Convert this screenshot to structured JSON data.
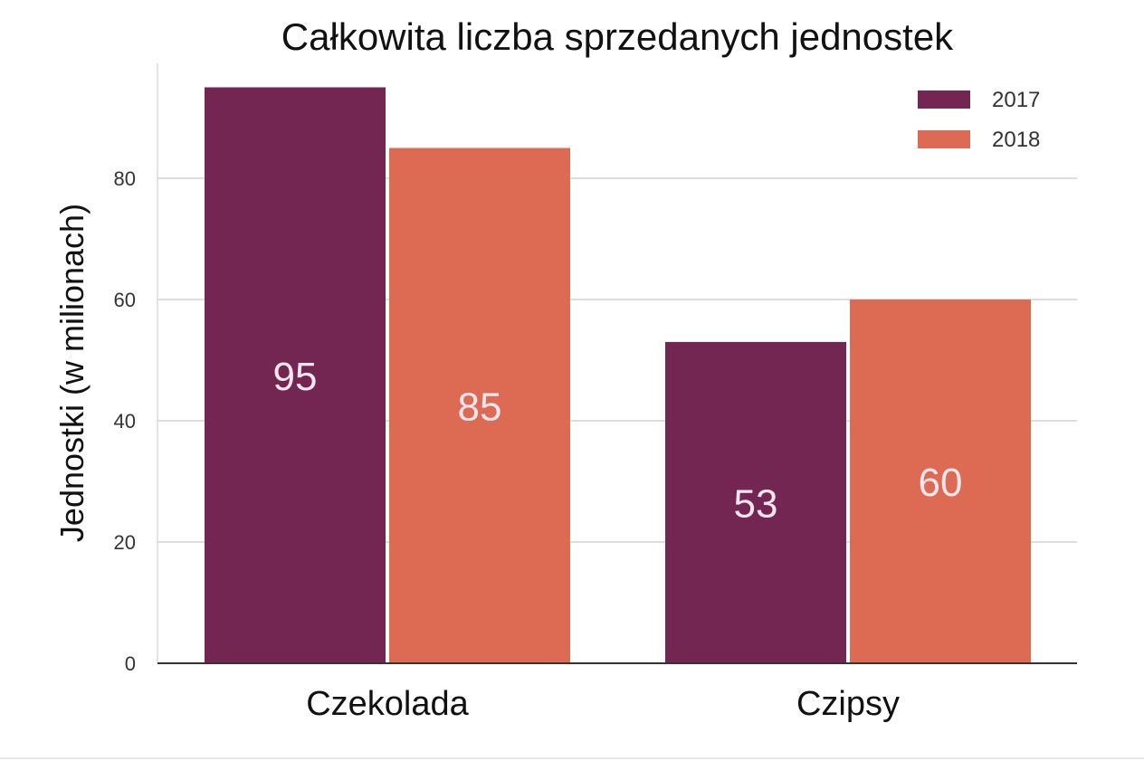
{
  "chart_data": {
    "type": "bar",
    "title": "Całkowita liczba sprzedanych jednostek",
    "xlabel": "",
    "ylabel": "Jednostki (w milionach)",
    "categories": [
      "Czekolada",
      "Czipsy"
    ],
    "series": [
      {
        "name": "2017",
        "values": [
          95,
          53
        ],
        "color": "#722651"
      },
      {
        "name": "2018",
        "values": [
          85,
          60
        ],
        "color": "#dd6a53"
      }
    ],
    "ylim": [
      0,
      100
    ],
    "yticks": [
      0,
      20,
      40,
      60,
      80
    ],
    "grid": true,
    "legend_position": "top-right",
    "data_labels": true
  }
}
